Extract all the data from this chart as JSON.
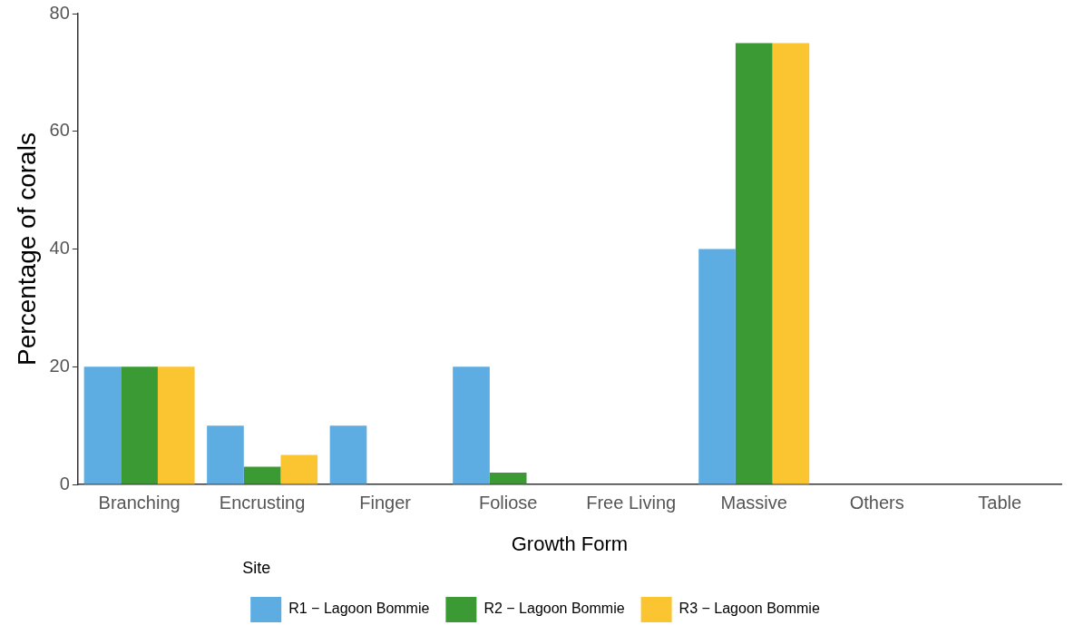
{
  "chart_data": {
    "type": "bar",
    "xlabel": "Growth Form",
    "ylabel": "Percentage of corals",
    "legend_title": "Site",
    "legend": "bottom",
    "categories": [
      "Branching",
      "Encrusting",
      "Finger",
      "Foliose",
      "Free Living",
      "Massive",
      "Others",
      "Table"
    ],
    "series": [
      {
        "name": "R1 − Lagoon Bommie",
        "color": "#5dade2",
        "values": [
          20,
          10,
          10,
          20,
          0,
          40,
          0,
          0
        ]
      },
      {
        "name": "R2 − Lagoon Bommie",
        "color": "#3c9a35",
        "values": [
          20,
          3,
          0,
          2,
          0,
          75,
          0,
          0
        ]
      },
      {
        "name": "R3 − Lagoon Bommie",
        "color": "#fbc531",
        "values": [
          20,
          5,
          0,
          0,
          0,
          75,
          0,
          0
        ]
      }
    ],
    "ylim": [
      0,
      80
    ],
    "yticks": [
      0,
      20,
      40,
      60,
      80
    ],
    "grid": false
  }
}
